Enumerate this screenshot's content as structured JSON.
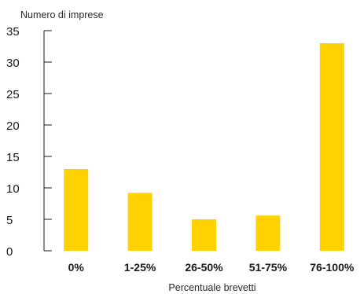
{
  "chart_data": {
    "type": "bar",
    "ylabel": "Numero di imprese",
    "xlabel": "Percentuale brevetti",
    "categories": [
      "0%",
      "1-25%",
      "26-50%",
      "51-75%",
      "76-100%"
    ],
    "values": [
      13,
      9.2,
      5,
      5.6,
      33
    ],
    "ylim": [
      0,
      35
    ],
    "yticks": [
      0,
      5,
      10,
      15,
      20,
      25,
      30,
      35
    ],
    "grid": false,
    "bar_color": "#FFD200"
  }
}
